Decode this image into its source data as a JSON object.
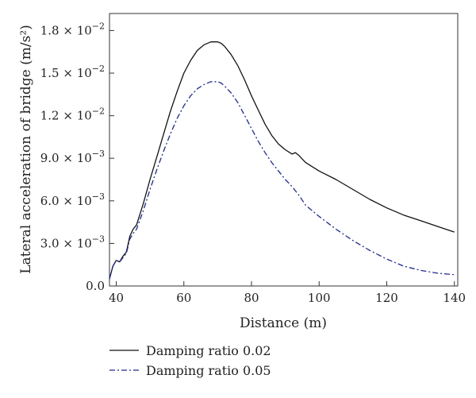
{
  "chart_data": {
    "type": "line",
    "title": "",
    "xlabel": "Distance (m)",
    "ylabel": "Lateral acceleration of bridge (m/s²)",
    "xlim": [
      38,
      141
    ],
    "ylim": [
      0,
      0.0192
    ],
    "x_ticks": [
      {
        "value": 40,
        "label": "40"
      },
      {
        "value": 60,
        "label": "60"
      },
      {
        "value": 80,
        "label": "80"
      },
      {
        "value": 100,
        "label": "100"
      },
      {
        "value": 120,
        "label": "120"
      },
      {
        "value": 140,
        "label": "140"
      }
    ],
    "y_ticks": [
      {
        "value": 0.0,
        "mantissa": "0.0",
        "exponent": ""
      },
      {
        "value": 0.003,
        "mantissa": "3.0 × 10",
        "exponent": "−3"
      },
      {
        "value": 0.006,
        "mantissa": "6.0 × 10",
        "exponent": "−3"
      },
      {
        "value": 0.009,
        "mantissa": "9.0 × 10",
        "exponent": "−3"
      },
      {
        "value": 0.012,
        "mantissa": "1.2 × 10",
        "exponent": "−2"
      },
      {
        "value": 0.015,
        "mantissa": "1.5 × 10",
        "exponent": "−2"
      },
      {
        "value": 0.018,
        "mantissa": "1.8 × 10",
        "exponent": "−2"
      }
    ],
    "grid": false,
    "legend_position": "bottom",
    "series": [
      {
        "name": "Damping ratio 0.02",
        "color": "#111111",
        "style": "solid",
        "x": [
          38,
          39,
          40,
          41,
          42,
          43,
          44,
          45,
          46,
          48,
          50,
          52,
          54,
          56,
          58,
          60,
          62,
          64,
          66,
          68,
          69,
          70,
          71,
          72,
          74,
          76,
          78,
          80,
          82,
          84,
          86,
          88,
          90,
          92,
          93,
          94,
          96,
          100,
          105,
          110,
          115,
          120,
          125,
          130,
          135,
          140
        ],
        "y": [
          0.0005,
          0.0014,
          0.0018,
          0.0017,
          0.0021,
          0.0024,
          0.0035,
          0.004,
          0.0043,
          0.0058,
          0.0075,
          0.0091,
          0.0107,
          0.0123,
          0.0137,
          0.015,
          0.0159,
          0.0166,
          0.017,
          0.0172,
          0.0172,
          0.0172,
          0.0171,
          0.0169,
          0.0163,
          0.0155,
          0.0145,
          0.0134,
          0.0124,
          0.0114,
          0.0106,
          0.01,
          0.0096,
          0.0093,
          0.0094,
          0.0092,
          0.0087,
          0.0081,
          0.0075,
          0.0068,
          0.0061,
          0.0055,
          0.005,
          0.0046,
          0.0042,
          0.0038
        ]
      },
      {
        "name": "Damping ratio 0.05",
        "color": "#1f2a8c",
        "style": "dashdot",
        "x": [
          38,
          39,
          40,
          41,
          42,
          43,
          44,
          45,
          46,
          48,
          50,
          52,
          54,
          56,
          58,
          60,
          62,
          64,
          66,
          68,
          69,
          70,
          71,
          72,
          74,
          76,
          78,
          80,
          82,
          84,
          86,
          88,
          90,
          92,
          94,
          96,
          100,
          105,
          110,
          115,
          120,
          125,
          130,
          135,
          140
        ],
        "y": [
          0.0005,
          0.0014,
          0.0018,
          0.0017,
          0.002,
          0.0023,
          0.0033,
          0.0037,
          0.004,
          0.0053,
          0.0068,
          0.0082,
          0.0095,
          0.0107,
          0.0118,
          0.0127,
          0.0134,
          0.0139,
          0.0142,
          0.0144,
          0.0144,
          0.0144,
          0.0143,
          0.0141,
          0.0136,
          0.0129,
          0.012,
          0.0111,
          0.0102,
          0.0094,
          0.0087,
          0.0081,
          0.0075,
          0.007,
          0.0064,
          0.0057,
          0.0049,
          0.004,
          0.0032,
          0.0025,
          0.0019,
          0.0014,
          0.0011,
          0.0009,
          0.0008
        ]
      }
    ]
  }
}
